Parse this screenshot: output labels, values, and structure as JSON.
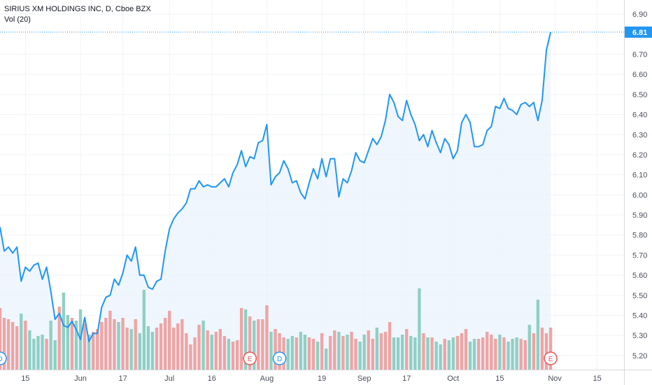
{
  "header": {
    "symbol_line": "SIRIUS XM HOLDINGS INC, D, Cboe BZX",
    "volume_line": "Vol (20)"
  },
  "colors": {
    "line": "#2196f3",
    "area": "#eaf3fd",
    "up_volume": "#8fd0c4",
    "down_volume": "#efa4a4",
    "grid": "#f1f3f6",
    "axis_text": "#4a4f5a",
    "price_tag_bg": "#2196f3",
    "price_tag_text": "#ffffff"
  },
  "events": [
    {
      "label": "D",
      "type": "dividend",
      "x_index": 0
    },
    {
      "label": "E",
      "type": "earnings",
      "x_index": 59
    },
    {
      "label": "D",
      "type": "dividend",
      "x_index": 66
    },
    {
      "label": "E",
      "type": "earnings",
      "x_index": 130
    }
  ],
  "chart_data": {
    "type": "line",
    "title": "SIRIUS XM HOLDINGS INC, D, Cboe BZX",
    "last_price_label": "6.81",
    "x_tick_labels": [
      {
        "label": "15",
        "index": 6
      },
      {
        "label": "Jun",
        "index": 19
      },
      {
        "label": "17",
        "index": 29
      },
      {
        "label": "Jul",
        "index": 40
      },
      {
        "label": "16",
        "index": 50
      },
      {
        "label": "Aug",
        "index": 63
      },
      {
        "label": "19",
        "index": 76
      },
      {
        "label": "Sep",
        "index": 86
      },
      {
        "label": "17",
        "index": 96
      },
      {
        "label": "Oct",
        "index": 107
      },
      {
        "label": "15",
        "index": 118
      },
      {
        "label": "Nov",
        "index": 131
      },
      {
        "label": "15",
        "index": 141
      }
    ],
    "y_axis": {
      "ylim": [
        5.13,
        6.97
      ],
      "ticks": [
        "6.90",
        "6.81",
        "6.70",
        "6.60",
        "6.50",
        "6.40",
        "6.30",
        "6.20",
        "6.10",
        "6.00",
        "5.90",
        "5.80",
        "5.70",
        "5.60",
        "5.50",
        "5.40",
        "5.30",
        "5.20"
      ]
    },
    "grid": true,
    "x_count": 148,
    "series": [
      {
        "values": [
          5.84,
          5.72,
          5.74,
          5.71,
          5.74,
          5.57,
          5.64,
          5.62,
          5.65,
          5.66,
          5.58,
          5.64,
          5.52,
          5.38,
          5.41,
          5.35,
          5.34,
          5.37,
          5.33,
          5.28,
          5.39,
          5.27,
          5.31,
          5.31,
          5.44,
          5.49,
          5.5,
          5.58,
          5.55,
          5.61,
          5.7,
          5.67,
          5.74,
          5.6,
          5.6,
          5.54,
          5.53,
          5.57,
          5.58,
          5.72,
          5.83,
          5.88,
          5.91,
          5.93,
          5.96,
          6.03,
          6.03,
          6.07,
          6.04,
          6.05,
          6.04,
          6.04,
          6.06,
          6.08,
          6.04,
          6.11,
          6.15,
          6.22,
          6.14,
          6.19,
          6.18,
          6.26,
          6.27,
          6.35,
          6.05,
          6.09,
          6.11,
          6.17,
          6.13,
          6.06,
          6.07,
          6.01,
          5.98,
          6.06,
          6.13,
          6.08,
          6.18,
          6.09,
          6.18,
          6.18,
          5.99,
          6.08,
          6.06,
          6.12,
          6.21,
          6.17,
          6.16,
          6.22,
          6.28,
          6.25,
          6.29,
          6.37,
          6.5,
          6.46,
          6.39,
          6.37,
          6.47,
          6.4,
          6.35,
          6.27,
          6.3,
          6.24,
          6.32,
          6.26,
          6.21,
          6.28,
          6.25,
          6.18,
          6.22,
          6.36,
          6.4,
          6.36,
          6.24,
          6.24,
          6.25,
          6.32,
          6.34,
          6.44,
          6.43,
          6.48,
          6.43,
          6.42,
          6.4,
          6.45,
          6.46,
          6.44,
          6.46,
          6.37,
          6.47,
          6.72,
          6.81
        ]
      }
    ],
    "volume": {
      "name": "Vol (20)",
      "values": [
        88,
        74,
        72,
        68,
        62,
        80,
        70,
        56,
        44,
        48,
        50,
        44,
        70,
        42,
        90,
        110,
        78,
        74,
        70,
        86,
        66,
        50,
        54,
        58,
        68,
        74,
        84,
        72,
        68,
        74,
        60,
        58,
        72,
        52,
        114,
        62,
        54,
        60,
        66,
        74,
        84,
        60,
        66,
        72,
        52,
        36,
        46,
        64,
        70,
        56,
        50,
        54,
        58,
        48,
        44,
        40,
        42,
        88,
        86,
        76,
        70,
        72,
        72,
        92,
        54,
        58,
        52,
        46,
        44,
        48,
        46,
        54,
        50,
        46,
        44,
        40,
        52,
        30,
        48,
        56,
        54,
        48,
        50,
        54,
        44,
        40,
        50,
        56,
        44,
        60,
        52,
        54,
        68,
        46,
        46,
        50,
        58,
        48,
        46,
        116,
        52,
        46,
        46,
        40,
        36,
        44,
        42,
        46,
        48,
        52,
        58,
        40,
        44,
        44,
        46,
        54,
        50,
        44,
        50,
        46,
        40,
        44,
        46,
        44,
        42,
        64,
        52,
        100,
        60,
        52,
        60
      ]
    },
    "volume_direction": [
      0,
      0,
      0,
      0,
      0,
      1,
      0,
      1,
      1,
      1,
      1,
      0,
      1,
      1,
      0,
      1,
      1,
      0,
      1,
      1,
      0,
      1,
      0,
      0,
      0,
      0,
      0,
      0,
      1,
      0,
      0,
      1,
      0,
      1,
      1,
      1,
      1,
      0,
      0,
      0,
      0,
      0,
      0,
      0,
      0,
      0,
      0,
      0,
      1,
      0,
      1,
      0,
      0,
      0,
      1,
      0,
      0,
      0,
      1,
      0,
      1,
      0,
      0,
      0,
      1,
      0,
      0,
      0,
      1,
      1,
      0,
      1,
      1,
      0,
      0,
      1,
      0,
      1,
      0,
      0,
      1,
      0,
      1,
      0,
      0,
      1,
      1,
      0,
      0,
      1,
      0,
      0,
      0,
      1,
      1,
      1,
      0,
      1,
      1,
      1,
      0,
      1,
      0,
      1,
      1,
      0,
      1,
      1,
      0,
      0,
      0,
      1,
      1,
      0,
      0,
      0,
      0,
      0,
      1,
      0,
      1,
      1,
      1,
      0,
      0,
      1,
      0,
      1,
      0,
      0,
      0
    ]
  }
}
